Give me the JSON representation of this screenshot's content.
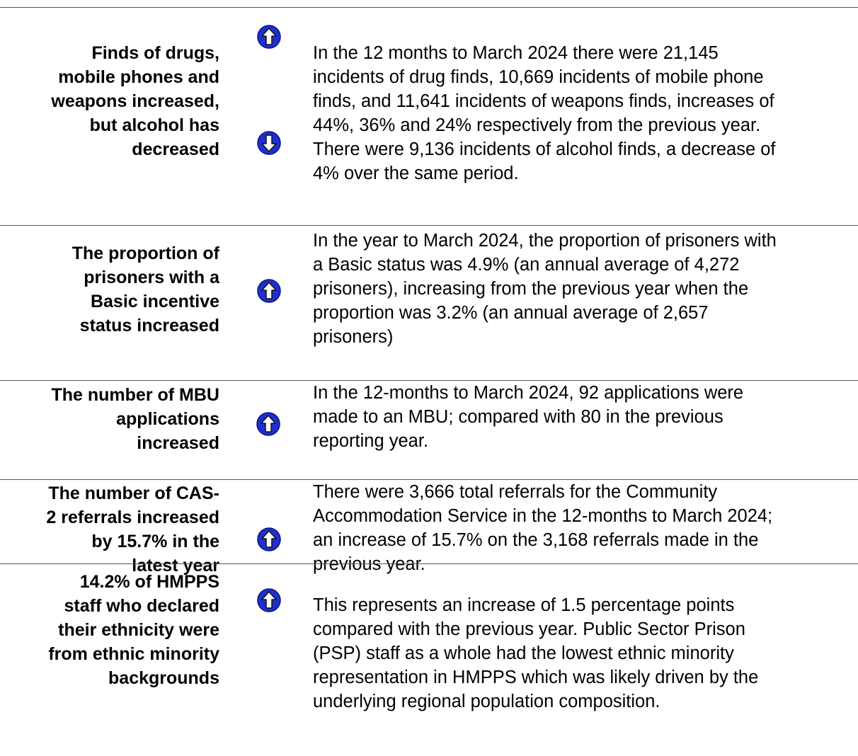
{
  "table": {
    "rows": [
      {
        "heading": [
          "Finds of drugs,",
          "mobile phones and",
          "weapons increased,",
          "but alcohol has",
          "decreased"
        ],
        "body": [
          "In the 12 months to March 2024 there were 21,145",
          "incidents of drug finds, 10,669 incidents of mobile phone",
          "finds, and 11,641 incidents of weapons finds, increases of",
          "44%, 36% and 24% respectively from the previous year.",
          "There were 9,136 incidents of alcohol finds, a decrease of",
          "4% over the same period."
        ]
      },
      {
        "heading": [
          "The proportion of",
          "prisoners with a",
          "Basic incentive",
          "status increased"
        ],
        "body": [
          "In the year to March 2024, the proportion of prisoners with",
          "a Basic status was 4.9% (an annual average of 4,272",
          "prisoners), increasing from the previous year when the",
          "proportion was 3.2% (an annual average of 2,657",
          "prisoners)"
        ]
      },
      {
        "heading": [
          "The number of MBU",
          "applications",
          "increased"
        ],
        "body": [
          "In the 12-months to March 2024, 92 applications were",
          "made to an MBU; compared with 80 in the previous",
          "reporting year."
        ]
      },
      {
        "heading": [
          "The number of CAS-",
          "2 referrals increased",
          "by 15.7% in the",
          "latest year"
        ],
        "body": [
          "There were 3,666 total referrals for the Community",
          "Accommodation Service in the 12-months to March 2024;",
          "an increase of 15.7% on the 3,168 referrals made in the",
          "previous year."
        ]
      },
      {
        "heading": [
          "14.2% of HMPPS",
          "staff who declared",
          "their ethnicity were",
          "from ethnic minority",
          "backgrounds"
        ],
        "body": [
          "This represents an increase of 1.5 percentage points",
          "compared with the previous year. Public Sector Prison",
          "(PSP) staff as a whole had the lowest ethnic minority",
          "representation in HMPPS which was likely driven by the",
          "underlying regional population composition."
        ]
      }
    ]
  }
}
